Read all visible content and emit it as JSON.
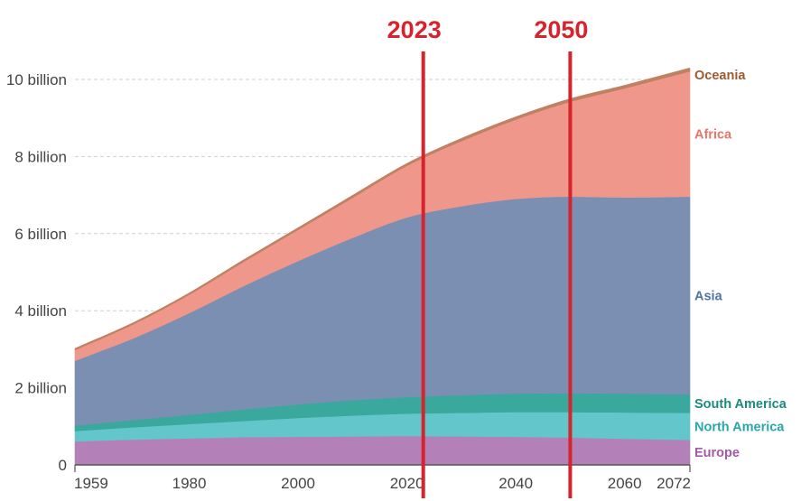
{
  "chart_data": {
    "type": "area",
    "stacked": true,
    "title": "",
    "xlabel": "",
    "ylabel": "",
    "xlim": [
      1959,
      2072
    ],
    "ylim": [
      0,
      10
    ],
    "y_unit": "billion",
    "y_ticks": [
      {
        "value": 0,
        "label": "0"
      },
      {
        "value": 2,
        "label": "2 billion"
      },
      {
        "value": 4,
        "label": "4 billion"
      },
      {
        "value": 6,
        "label": "6 billion"
      },
      {
        "value": 8,
        "label": "8 billion"
      },
      {
        "value": 10,
        "label": "10 billion"
      }
    ],
    "x_ticks": [
      {
        "value": 1959,
        "label": "1959"
      },
      {
        "value": 1980,
        "label": "1980"
      },
      {
        "value": 2000,
        "label": "2000"
      },
      {
        "value": 2020,
        "label": "2020"
      },
      {
        "value": 2040,
        "label": "2040"
      },
      {
        "value": 2060,
        "label": "2060"
      },
      {
        "value": 2072,
        "label": "2072"
      }
    ],
    "x": [
      1959,
      1970,
      1980,
      1990,
      2000,
      2010,
      2020,
      2030,
      2040,
      2050,
      2060,
      2072
    ],
    "series": [
      {
        "name": "Europe",
        "color": "#b480b8",
        "label_color": "#a35aa8",
        "values": [
          0.61,
          0.66,
          0.69,
          0.72,
          0.73,
          0.74,
          0.75,
          0.74,
          0.73,
          0.71,
          0.68,
          0.65
        ]
      },
      {
        "name": "North America",
        "color": "#63c6cb",
        "label_color": "#2aa6ad",
        "values": [
          0.27,
          0.32,
          0.37,
          0.42,
          0.49,
          0.54,
          0.58,
          0.61,
          0.64,
          0.66,
          0.68,
          0.7
        ]
      },
      {
        "name": "South America",
        "color": "#3aa89c",
        "label_color": "#1b8a7d",
        "values": [
          0.14,
          0.19,
          0.24,
          0.3,
          0.35,
          0.4,
          0.43,
          0.46,
          0.48,
          0.49,
          0.49,
          0.48
        ]
      },
      {
        "name": "Asia",
        "color": "#7b8fb2",
        "label_color": "#4f74a8",
        "values": [
          1.68,
          2.13,
          2.64,
          3.2,
          3.72,
          4.21,
          4.66,
          4.9,
          5.05,
          5.1,
          5.09,
          5.13
        ]
      },
      {
        "name": "Africa",
        "color": "#ee978a",
        "label_color": "#e8766a",
        "values": [
          0.28,
          0.37,
          0.48,
          0.63,
          0.81,
          1.04,
          1.34,
          1.69,
          2.06,
          2.46,
          2.83,
          3.25
        ]
      },
      {
        "name": "Oceania",
        "color": "#c08062",
        "label_color": "#9c5b32",
        "values": [
          0.02,
          0.02,
          0.02,
          0.03,
          0.03,
          0.04,
          0.04,
          0.05,
          0.05,
          0.06,
          0.06,
          0.07
        ]
      }
    ],
    "markers": [
      {
        "year": 2023,
        "label": "2023",
        "color": "#d7232d"
      },
      {
        "year": 2050,
        "label": "2050",
        "color": "#d7232d"
      }
    ],
    "grid": true,
    "legend_position": "right"
  }
}
